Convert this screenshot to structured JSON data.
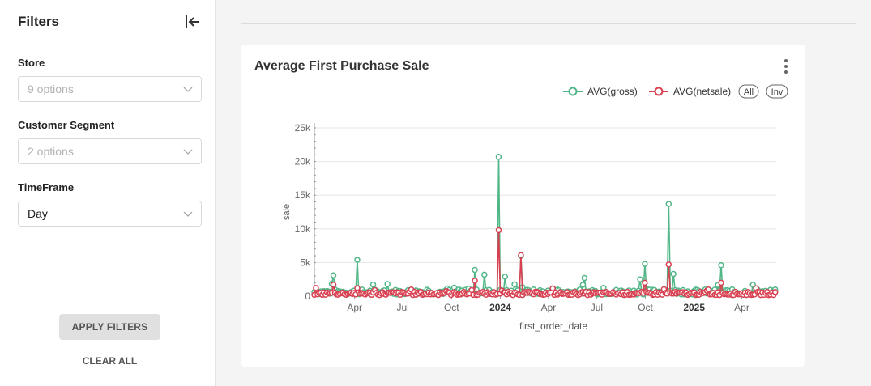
{
  "sidebar": {
    "title": "Filters",
    "fields": [
      {
        "label": "Store",
        "value": "9 options",
        "state": "placeholder"
      },
      {
        "label": "Customer Segment",
        "value": "2 options",
        "state": "placeholder"
      },
      {
        "label": "TimeFrame",
        "value": "Day",
        "state": "selected"
      }
    ],
    "apply_label": "APPLY FILTERS",
    "clear_label": "CLEAR ALL"
  },
  "card": {
    "title": "Average First Purchase Sale",
    "menu_icon": "kebab-menu-icon"
  },
  "colors": {
    "gross": "#52b788",
    "netsale": "#d94051",
    "grid": "#e6e6e6",
    "axis_text": "#666666"
  },
  "chart_data": {
    "type": "line",
    "title": "",
    "xlabel": "first_order_date",
    "ylabel": "sale",
    "ylim": [
      0,
      25000
    ],
    "y_ticks": [
      "0",
      "5k",
      "10k",
      "15k",
      "20k",
      "25k"
    ],
    "x_tick_labels": [
      "Apr",
      "Jul",
      "Oct",
      "2024",
      "Apr",
      "Jul",
      "Oct",
      "2025",
      "Apr"
    ],
    "x_range": [
      "2023-01-15",
      "2025-06-05"
    ],
    "legend": {
      "placement": "top-right",
      "all_label": "All",
      "inv_label": "Inv"
    },
    "grid": true,
    "series": [
      {
        "name": "AVG(gross)",
        "baseline_typical": 700,
        "peaks": [
          {
            "date": "2023-02-20",
            "value": 3100
          },
          {
            "date": "2023-04-05",
            "value": 5400
          },
          {
            "date": "2023-06-01",
            "value": 1800
          },
          {
            "date": "2023-11-15",
            "value": 3900
          },
          {
            "date": "2023-12-01",
            "value": 3200
          },
          {
            "date": "2023-12-30",
            "value": 20700
          },
          {
            "date": "2024-01-10",
            "value": 2900
          },
          {
            "date": "2024-02-10",
            "value": 6000
          },
          {
            "date": "2024-06-08",
            "value": 2700
          },
          {
            "date": "2024-09-20",
            "value": 2500
          },
          {
            "date": "2024-10-01",
            "value": 4800
          },
          {
            "date": "2024-11-15",
            "value": 13700
          },
          {
            "date": "2024-11-22",
            "value": 3300
          },
          {
            "date": "2025-02-22",
            "value": 4600
          }
        ]
      },
      {
        "name": "AVG(netsale)",
        "baseline_typical": 450,
        "peaks": [
          {
            "date": "2023-02-20",
            "value": 1700
          },
          {
            "date": "2023-04-05",
            "value": 1200
          },
          {
            "date": "2023-11-15",
            "value": 2300
          },
          {
            "date": "2023-12-30",
            "value": 9800
          },
          {
            "date": "2024-02-10",
            "value": 6100
          },
          {
            "date": "2024-10-01",
            "value": 2000
          },
          {
            "date": "2024-11-15",
            "value": 4700
          },
          {
            "date": "2025-02-22",
            "value": 2000
          }
        ]
      }
    ]
  }
}
